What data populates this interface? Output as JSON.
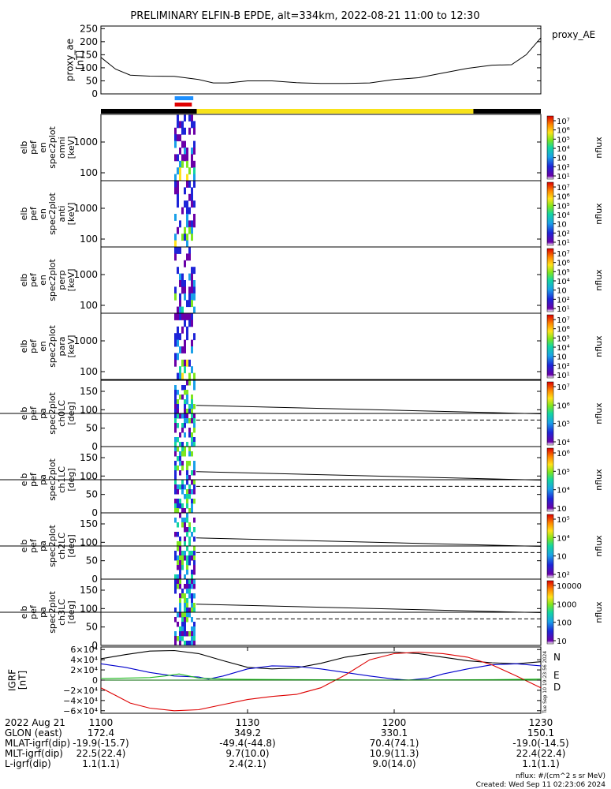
{
  "title": "PRELIMINARY ELFIN-B EPDE, alt=334km, 2022-08-21 11:00 to 12:30",
  "proxy_ae": {
    "ylabel": "proxy_ae\n[nT]",
    "legend": "proxy_AE",
    "yticks": [
      "250",
      "200",
      "150",
      "100",
      "50",
      "0"
    ],
    "ylim": [
      0,
      260
    ],
    "series": {
      "t": [
        1100,
        1103,
        1106,
        1110,
        1115,
        1120,
        1123,
        1126,
        1130,
        1135,
        1140,
        1145,
        1150,
        1155,
        1200,
        1205,
        1210,
        1215,
        1220,
        1224,
        1227,
        1230
      ],
      "v": [
        140,
        95,
        72,
        68,
        67,
        55,
        42,
        42,
        50,
        50,
        43,
        40,
        40,
        42,
        55,
        62,
        80,
        98,
        110,
        112,
        150,
        215
      ]
    }
  },
  "science_bars": [
    {
      "color": "#1e90ff",
      "t0": 1115.1,
      "t1": 1118.9
    },
    {
      "color": "#e00000",
      "t0": 1115.1,
      "t1": 1118.6
    }
  ],
  "sunlight_bar": [
    {
      "color": "#000000",
      "t0": 1100,
      "t1": 1119.6
    },
    {
      "color": "#f7e21a",
      "t0": 1119.6,
      "t1": 1216.2
    },
    {
      "color": "#000000",
      "t0": 1216.2,
      "t1": 1230
    }
  ],
  "energy_panels": [
    {
      "ylabel": "elb\npef\nen\nspec2plot\nomni\n[keV]",
      "yticks": [
        "1000",
        "100"
      ],
      "cbar_ticks": [
        "10⁷",
        "10⁶",
        "10⁵",
        "10⁴",
        "10⁳",
        "10²",
        "10¹"
      ],
      "cbar_label": "nflux"
    },
    {
      "ylabel": "elb\npef\nen\nspec2plot\nanti\n[keV]",
      "yticks": [
        "1000",
        "100"
      ],
      "cbar_ticks": [
        "10⁷",
        "10⁶",
        "10⁵",
        "10⁴",
        "10⁳",
        "10²",
        "10¹"
      ],
      "cbar_label": "nflux"
    },
    {
      "ylabel": "elb\npef\nen\nspec2plot\nperp\n[keV]",
      "yticks": [
        "1000",
        "100"
      ],
      "cbar_ticks": [
        "10⁷",
        "10⁶",
        "10⁵",
        "10⁴",
        "10⁳",
        "10²",
        "10¹"
      ],
      "cbar_label": "nflux"
    },
    {
      "ylabel": "elb\npef\nen\nspec2plot\npara\n[keV]",
      "yticks": [
        "1000",
        "100"
      ],
      "cbar_ticks": [
        "10⁷",
        "10⁶",
        "10⁵",
        "10⁴",
        "10⁳",
        "10²",
        "10¹"
      ],
      "cbar_label": "nflux"
    }
  ],
  "pitch_panels": [
    {
      "ylabel": "elb\npef\npa\nspec2plot\nch0LC\n[deg]",
      "yticks": [
        "150",
        "100",
        "50",
        "0"
      ],
      "cbar_ticks": [
        "10⁷",
        "10⁶",
        "10⁵",
        "10⁴"
      ],
      "cbar_label": "nflux"
    },
    {
      "ylabel": "elb\npef\npa\nspec2plot\nch1LC\n[deg]",
      "yticks": [
        "150",
        "100",
        "50",
        "0"
      ],
      "cbar_ticks": [
        "10⁶",
        "10⁵",
        "10⁴",
        "10⁳"
      ],
      "cbar_label": "nflux"
    },
    {
      "ylabel": "elb\npef\npa\nspec2plot\nch2LC\n[deg]",
      "yticks": [
        "150",
        "100",
        "50",
        "0"
      ],
      "cbar_ticks": [
        "10⁵",
        "10⁴",
        "10⁳",
        "10²"
      ],
      "cbar_label": "nflux"
    },
    {
      "ylabel": "elb\npef\npa\nspec2plot\nch3LC\n[deg]",
      "yticks": [
        "150",
        "100",
        "50",
        "0"
      ],
      "cbar_ticks": [
        "10000",
        "1000",
        "100",
        "10"
      ],
      "cbar_label": "nflux"
    }
  ],
  "igrf": {
    "ylabel": "IGRF\n[nT]",
    "yticks": [
      "6×10⁴",
      "4×10⁴",
      "2×10⁴",
      "0",
      "−2×10⁴",
      "−4×10⁴",
      "−6×10⁴"
    ],
    "legend": [
      {
        "label": "N",
        "color": "#0000cc"
      },
      {
        "label": "E",
        "color": "#22bb22"
      },
      {
        "label": "D",
        "color": "#dd0000"
      }
    ],
    "side_note": "Tue Sep 10 19:23:56 2024",
    "ylim": [
      -65000,
      65000
    ],
    "series": [
      {
        "color": "#000000",
        "t": [
          1100,
          1105,
          1110,
          1115,
          1120,
          1125,
          1130,
          1135,
          1140,
          1145,
          1150,
          1155,
          1200,
          1205,
          1210,
          1215,
          1220,
          1225,
          1230
        ],
        "v": [
          42000,
          50000,
          57000,
          58000,
          52000,
          38000,
          25000,
          22000,
          24000,
          33000,
          45000,
          52000,
          55000,
          52000,
          45000,
          38000,
          34000,
          32000,
          36000
        ]
      },
      {
        "color": "#0000cc",
        "t": [
          1100,
          1105,
          1110,
          1115,
          1120,
          1122,
          1125,
          1130,
          1135,
          1140,
          1145,
          1150,
          1155,
          1200,
          1203,
          1207,
          1210,
          1215,
          1220,
          1225,
          1230
        ],
        "v": [
          32000,
          25000,
          15000,
          8000,
          6000,
          2000,
          8000,
          22000,
          28000,
          27000,
          22000,
          15000,
          8000,
          2000,
          0,
          4000,
          12000,
          22000,
          30000,
          32000,
          28000
        ]
      },
      {
        "color": "#22bb22",
        "t": [
          1100,
          1105,
          1110,
          1113,
          1116,
          1120,
          1125,
          1130,
          1140,
          1150,
          1200,
          1210,
          1220,
          1230
        ],
        "v": [
          3000,
          4000,
          5000,
          8000,
          12000,
          4000,
          2000,
          1500,
          1000,
          500,
          0,
          500,
          1000,
          2000
        ]
      },
      {
        "color": "#dd0000",
        "t": [
          1100,
          1103,
          1106,
          1110,
          1115,
          1120,
          1125,
          1130,
          1135,
          1140,
          1145,
          1148,
          1150,
          1155,
          1200,
          1205,
          1210,
          1215,
          1220,
          1225,
          1230
        ],
        "v": [
          -15000,
          -30000,
          -45000,
          -55000,
          -60000,
          -58000,
          -48000,
          -38000,
          -32000,
          -28000,
          -15000,
          0,
          10000,
          40000,
          52000,
          55000,
          52000,
          45000,
          30000,
          8000,
          -15000
        ]
      },
      {
        "color": "#006400",
        "t": [
          1100,
          1230
        ],
        "v": [
          0,
          0
        ]
      }
    ]
  },
  "x_axis": {
    "ticks": [
      "1100",
      "1130",
      "1200",
      "1230"
    ],
    "tick_values": [
      1100,
      1130,
      1200,
      1230
    ],
    "xlim": [
      1100,
      1230
    ]
  },
  "footer": {
    "rows": [
      {
        "label": "2022 Aug 21",
        "values": [
          "1100",
          "1130",
          "1200",
          "1230"
        ]
      },
      {
        "label": "GLON (east)",
        "values": [
          "172.4",
          "349.2",
          "330.1",
          "150.1"
        ]
      },
      {
        "label": "MLAT-igrf(dip)",
        "values": [
          "-19.9(-15.7)",
          "-49.4(-44.8)",
          "70.4(74.1)",
          "-19.0(-14.5)"
        ]
      },
      {
        "label": "MLT-igrf(dip)",
        "values": [
          "22.5(22.4)",
          "9.7(10.0)",
          "10.9(11.3)",
          "22.4(22.4)"
        ]
      },
      {
        "label": "L-igrf(dip)",
        "values": [
          "1.1(1.1)",
          "2.4(2.1)",
          "9.0(14.0)",
          "1.1(1.1)"
        ]
      }
    ],
    "units_note": "nflux: #/(cm^2 s sr MeV)",
    "created_note": "Created: Wed Sep 11 02:23:06 2024"
  }
}
